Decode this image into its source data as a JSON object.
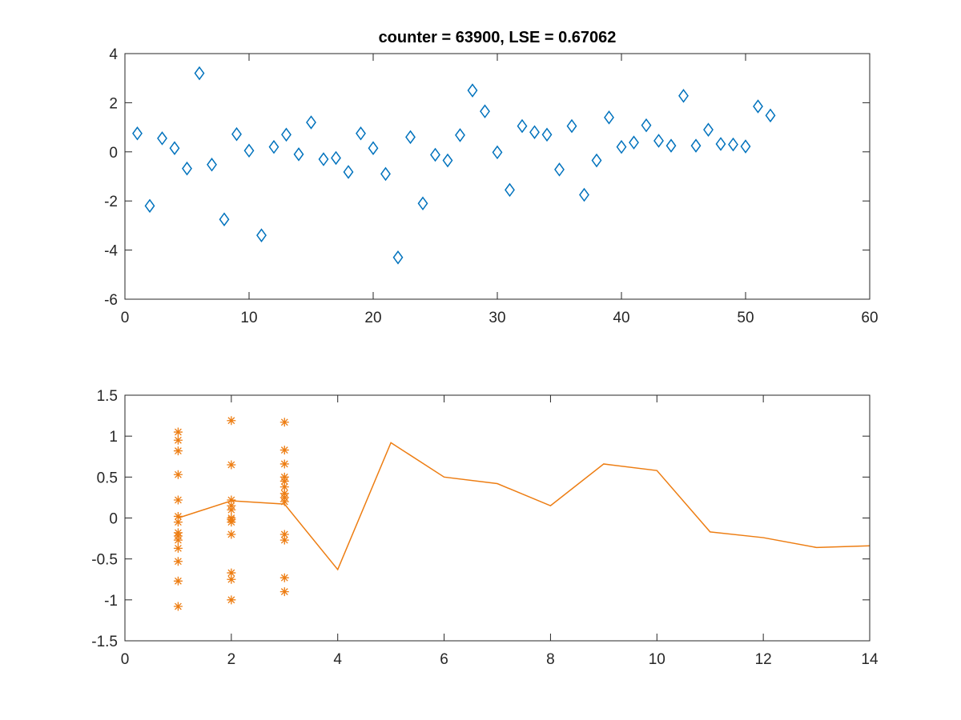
{
  "chart_data": [
    {
      "type": "scatter",
      "title": "counter = 63900, LSE = 0.67062",
      "xlabel": "",
      "ylabel": "",
      "xlim": [
        0,
        60
      ],
      "ylim": [
        -6,
        4
      ],
      "xticks": [
        0,
        10,
        20,
        30,
        40,
        50,
        60
      ],
      "yticks": [
        -6,
        -4,
        -2,
        0,
        2,
        4
      ],
      "grid": false,
      "legend": "none",
      "series": [
        {
          "marker": "diamond",
          "color": "#0072BD",
          "x": [
            1,
            2,
            3,
            4,
            5,
            6,
            7,
            8,
            9,
            10,
            11,
            12,
            13,
            14,
            15,
            16,
            17,
            18,
            19,
            20,
            21,
            22,
            23,
            24,
            25,
            26,
            27,
            28,
            29,
            30,
            31,
            32,
            33,
            34,
            35,
            36,
            37,
            38,
            39,
            40,
            41,
            42,
            43,
            44,
            45,
            46,
            47,
            48,
            49,
            50,
            51,
            52
          ],
          "y": [
            0.75,
            -2.2,
            0.55,
            0.15,
            -0.68,
            3.2,
            -0.52,
            -2.75,
            0.72,
            0.05,
            -3.4,
            0.2,
            0.7,
            -0.1,
            1.2,
            -0.3,
            -0.25,
            -0.82,
            0.75,
            0.15,
            -0.9,
            -4.3,
            0.6,
            -2.1,
            -0.12,
            -0.35,
            0.68,
            2.5,
            1.65,
            -0.02,
            -1.55,
            1.05,
            0.8,
            0.7,
            -0.72,
            1.05,
            -1.75,
            -0.35,
            1.4,
            0.2,
            0.38,
            1.08,
            0.45,
            0.25,
            2.28,
            0.25,
            0.9,
            0.32,
            0.3,
            0.22,
            1.85,
            1.48
          ]
        }
      ]
    },
    {
      "type": "line",
      "title": "",
      "xlabel": "",
      "ylabel": "",
      "xlim": [
        0,
        14
      ],
      "ylim": [
        -1.5,
        1.5
      ],
      "xticks": [
        0,
        2,
        4,
        6,
        8,
        10,
        12,
        14
      ],
      "yticks": [
        -1.5,
        -1,
        -0.5,
        0,
        0.5,
        1,
        1.5
      ],
      "grid": false,
      "legend": "none",
      "series": [
        {
          "type": "line",
          "color": "#ED7D12",
          "x": [
            1,
            2,
            3,
            4,
            5,
            6,
            7,
            8,
            9,
            10,
            11,
            12,
            13,
            14
          ],
          "y": [
            0.0,
            0.21,
            0.17,
            -0.63,
            0.92,
            0.5,
            0.42,
            0.15,
            0.66,
            0.58,
            -0.17,
            -0.24,
            -0.36,
            -0.34
          ]
        },
        {
          "type": "scatter",
          "marker": "asterisk",
          "color": "#ED7D12",
          "points": [
            [
              1,
              1.05
            ],
            [
              1,
              0.95
            ],
            [
              1,
              0.82
            ],
            [
              1,
              0.53
            ],
            [
              1,
              0.22
            ],
            [
              1,
              0.02
            ],
            [
              1,
              -0.05
            ],
            [
              1,
              -0.18
            ],
            [
              1,
              -0.22
            ],
            [
              1,
              -0.27
            ],
            [
              1,
              -0.37
            ],
            [
              1,
              -0.53
            ],
            [
              1,
              -0.77
            ],
            [
              1,
              -1.08
            ],
            [
              2,
              1.19
            ],
            [
              2,
              0.65
            ],
            [
              2,
              0.22
            ],
            [
              2,
              0.15
            ],
            [
              2,
              0.1
            ],
            [
              2,
              0.0
            ],
            [
              2,
              -0.02
            ],
            [
              2,
              -0.05
            ],
            [
              2,
              -0.2
            ],
            [
              2,
              -0.67
            ],
            [
              2,
              -0.75
            ],
            [
              2,
              -1.0
            ],
            [
              3,
              1.17
            ],
            [
              3,
              0.83
            ],
            [
              3,
              0.66
            ],
            [
              3,
              0.5
            ],
            [
              3,
              0.45
            ],
            [
              3,
              0.38
            ],
            [
              3,
              0.3
            ],
            [
              3,
              0.25
            ],
            [
              3,
              0.2
            ],
            [
              3,
              -0.2
            ],
            [
              3,
              -0.27
            ],
            [
              3,
              -0.73
            ],
            [
              3,
              -0.9
            ]
          ]
        }
      ]
    }
  ]
}
